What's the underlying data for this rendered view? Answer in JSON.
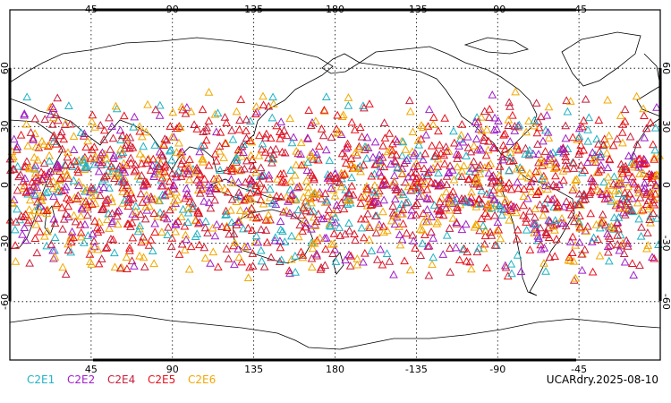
{
  "chart_data": {
    "type": "scatter",
    "projection": "equirectangular",
    "lon_range": [
      0,
      360
    ],
    "lat_range": [
      -90,
      90
    ],
    "grid": "dotted, every 45 deg lon and 30 deg lat",
    "top_ticks": [
      "45",
      "90",
      "135",
      "180",
      "-135",
      "-90",
      "-45"
    ],
    "bottom_ticks": [
      "45",
      "90",
      "135",
      "180",
      "-135",
      "-90",
      "-45"
    ],
    "lat_ticks": [
      "60",
      "30",
      "0",
      "-30",
      "-60"
    ],
    "lat_tick_values": [
      60,
      30,
      0,
      -30,
      -60
    ],
    "lon_tick_values": [
      45,
      90,
      135,
      180,
      225,
      270,
      315
    ],
    "marker": "open-triangle",
    "data_lat_extent": [
      -50,
      48
    ],
    "series": [
      {
        "name": "C2E1",
        "color": "#1fb3c4",
        "count": 260
      },
      {
        "name": "C2E2",
        "color": "#a01fc8",
        "count": 330
      },
      {
        "name": "C2E4",
        "color": "#c81f3c",
        "count": 430
      },
      {
        "name": "C2E5",
        "color": "#e8101a",
        "count": 520
      },
      {
        "name": "C2E6",
        "color": "#f2a800",
        "count": 480
      }
    ],
    "legend_placement": "bottom-left"
  },
  "run_label": "UCARdry.2025-08-10"
}
